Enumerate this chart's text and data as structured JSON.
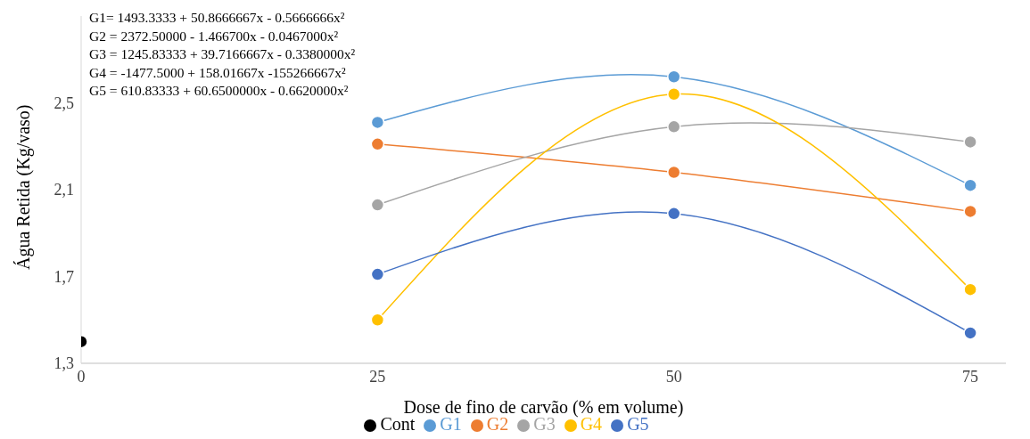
{
  "chart_data": {
    "type": "line",
    "xlabel": "Dose de fino de carvão (% em volume)",
    "ylabel": "Água Retida (Kg/vaso)",
    "annotations": [
      "G1= 1493.3333 + 50.8666667x - 0.5666666x²",
      "G2 = 2372.50000 - 1.466700x - 0.0467000x²",
      "G3 = 1245.83333 + 39.7166667x - 0.3380000x²",
      "G4 = -1477.5000 + 158.01667x -155266667x²",
      "G5 = 610.83333 + 60.6500000x - 0.6620000x²"
    ],
    "xlim": [
      0,
      78
    ],
    "xticks": [
      0,
      25,
      50,
      75
    ],
    "ylim": [
      1.3,
      2.9
    ],
    "yticks": [
      {
        "value": 1.3,
        "label": "1,3"
      },
      {
        "value": 1.7,
        "label": "1,7"
      },
      {
        "value": 2.1,
        "label": "2,1"
      },
      {
        "value": 2.5,
        "label": "2,5"
      }
    ],
    "marker": "circle",
    "line_style": "solid",
    "legend": "bottom",
    "series": [
      {
        "name": "G1",
        "color": "#5b9bd5",
        "x": [
          25,
          50,
          75
        ],
        "values": [
          2.41,
          2.62,
          2.12
        ]
      },
      {
        "name": "G2",
        "color": "#ed7d31",
        "x": [
          25,
          50,
          75
        ],
        "values": [
          2.31,
          2.18,
          2.0
        ]
      },
      {
        "name": "G3",
        "color": "#a5a5a5",
        "x": [
          25,
          50,
          75
        ],
        "values": [
          2.03,
          2.39,
          2.32
        ]
      },
      {
        "name": "G4",
        "color": "#ffc000",
        "x": [
          25,
          50,
          75
        ],
        "values": [
          1.5,
          2.54,
          1.64
        ]
      },
      {
        "name": "G5",
        "color": "#4472c4",
        "x": [
          25,
          50,
          75
        ],
        "values": [
          1.71,
          1.99,
          1.44
        ]
      },
      {
        "name": "Cont",
        "color": "#000000",
        "type": "scatter",
        "x": [
          0
        ],
        "values": [
          1.4
        ]
      }
    ]
  }
}
